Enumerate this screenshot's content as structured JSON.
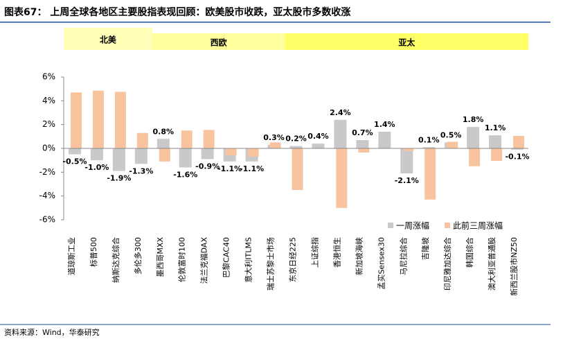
{
  "chart_data": {
    "type": "bar",
    "title": "图表67：  上周全球各地区主要股指表现回顾：欧美股市收跌，亚太股市多数收涨",
    "source": "资料来源：Wind，华泰研究",
    "regions": [
      "北美",
      "西欧",
      "亚太"
    ],
    "categories": [
      "道琼斯工业",
      "标普500",
      "纳斯达克综合",
      "多伦多300",
      "墨西哥MXX",
      "伦敦富时100",
      "法兰克福DAX",
      "巴黎CAC40",
      "意大利ITLMS",
      "瑞士苏黎士市场",
      "东京日经225",
      "上证综指",
      "香港恒生",
      "新加坡海峡",
      "孟买Sensex30",
      "马尼拉综合",
      "吉隆坡",
      "印尼雅加达综合",
      "韩国综合",
      "澳大利亚普通股",
      "新西兰股市NZ50"
    ],
    "series": [
      {
        "name": "一周涨幅",
        "color": "#c9c9c9",
        "values": [
          -0.5,
          -1.0,
          -1.9,
          -1.3,
          0.8,
          -1.6,
          -0.9,
          -1.1,
          -1.1,
          0.3,
          0.2,
          0.4,
          2.4,
          0.7,
          1.4,
          -2.1,
          0.1,
          0.5,
          1.8,
          1.1,
          -0.1
        ],
        "value_labels": [
          "-0.5%",
          "-1.0%",
          "-1.9%",
          "-1.3%",
          "0.8%",
          "-1.6%",
          "-0.9%",
          "-1.1%",
          "-1.1%",
          "0.3%",
          "0.2%",
          "0.4%",
          "2.4%",
          "0.7%",
          "1.4%",
          "-2.1%",
          "0.1%",
          "0.5%",
          "1.8%",
          "1.1%",
          "-0.1%"
        ]
      },
      {
        "name": "此前三周涨幅",
        "color": "#f8c4a0",
        "values": [
          4.7,
          4.85,
          4.75,
          1.3,
          -1.1,
          1.5,
          1.55,
          -0.6,
          -0.7,
          0.5,
          -3.5,
          0,
          -5.0,
          -0.35,
          0,
          -0.2,
          -4.3,
          0.55,
          -1.5,
          -1.05,
          1.05
        ]
      }
    ],
    "ylim": [
      -6,
      6
    ],
    "yticks": [
      {
        "value": -6,
        "label": "-6%"
      },
      {
        "value": -4,
        "label": "-4%"
      },
      {
        "value": -2,
        "label": "-2%"
      },
      {
        "value": 0,
        "label": "0%"
      },
      {
        "value": 2,
        "label": "2%"
      },
      {
        "value": 4,
        "label": "4%"
      },
      {
        "value": 6,
        "label": "6%"
      }
    ]
  }
}
